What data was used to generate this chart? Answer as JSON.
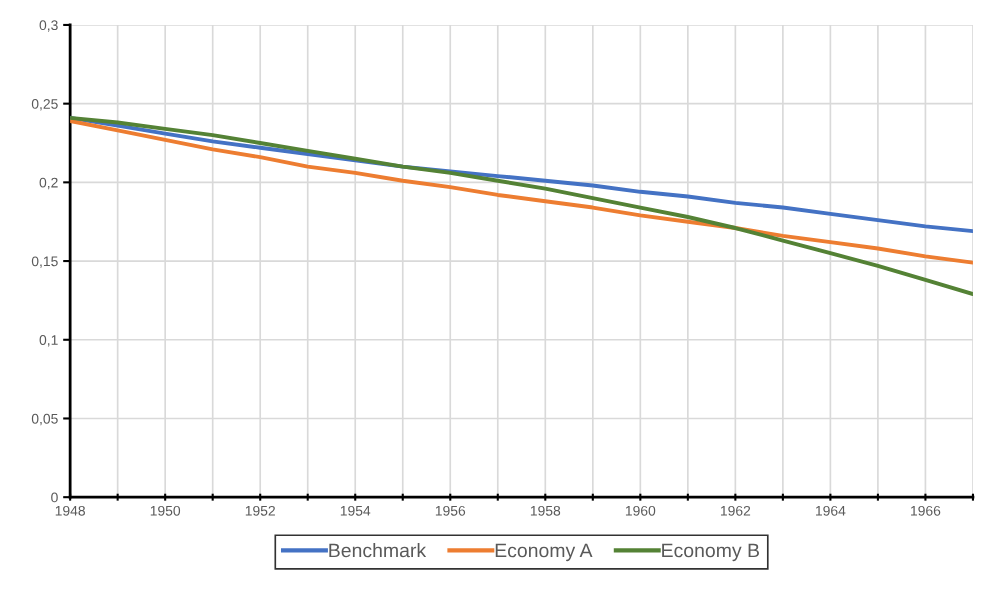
{
  "chart_data": {
    "type": "line",
    "x": [
      1948,
      1949,
      1950,
      1951,
      1952,
      1953,
      1954,
      1955,
      1956,
      1957,
      1958,
      1959,
      1960,
      1961,
      1962,
      1963,
      1964,
      1965,
      1966,
      1967
    ],
    "series": [
      {
        "name": "Benchmark",
        "color": "#4472c4",
        "values": [
          0.241,
          0.236,
          0.231,
          0.226,
          0.222,
          0.218,
          0.214,
          0.21,
          0.207,
          0.204,
          0.201,
          0.198,
          0.194,
          0.191,
          0.187,
          0.184,
          0.18,
          0.176,
          0.172,
          0.169
        ]
      },
      {
        "name": "Economy A",
        "color": "#ed7d31",
        "values": [
          0.239,
          0.233,
          0.227,
          0.221,
          0.216,
          0.21,
          0.206,
          0.201,
          0.197,
          0.192,
          0.188,
          0.184,
          0.179,
          0.175,
          0.171,
          0.166,
          0.162,
          0.158,
          0.153,
          0.149
        ]
      },
      {
        "name": "Economy B",
        "color": "#548235",
        "values": [
          0.241,
          0.238,
          0.234,
          0.23,
          0.225,
          0.22,
          0.215,
          0.21,
          0.206,
          0.201,
          0.196,
          0.19,
          0.184,
          0.178,
          0.171,
          0.163,
          0.155,
          0.147,
          0.138,
          0.129
        ]
      }
    ],
    "xlim": [
      1948,
      1967
    ],
    "xticks": [
      1948,
      {
        "value": 1949,
        "label": null
      },
      1950,
      {
        "value": 1951,
        "label": null
      },
      1952,
      {
        "value": 1953,
        "label": null
      },
      1954,
      {
        "value": 1955,
        "label": null
      },
      1956,
      {
        "value": 1957,
        "label": null
      },
      1958,
      {
        "value": 1959,
        "label": null
      },
      1960,
      {
        "value": 1961,
        "label": null
      },
      1962,
      {
        "value": 1963,
        "label": null
      },
      1964,
      {
        "value": 1965,
        "label": null
      },
      1966,
      {
        "value": 1967,
        "label": null
      }
    ],
    "ylim": [
      0,
      0.3
    ],
    "yticks": [
      0,
      {
        "value": 0.05,
        "label": "0,05"
      },
      {
        "value": 0.1,
        "label": "0,1"
      },
      {
        "value": 0.15,
        "label": "0,15"
      },
      {
        "value": 0.2,
        "label": "0,2"
      },
      {
        "value": 0.25,
        "label": "0,25"
      },
      {
        "value": 0.3,
        "label": "0,3"
      }
    ],
    "grid": true,
    "legend": "bottom",
    "marker": "none",
    "line_style": "solid"
  }
}
